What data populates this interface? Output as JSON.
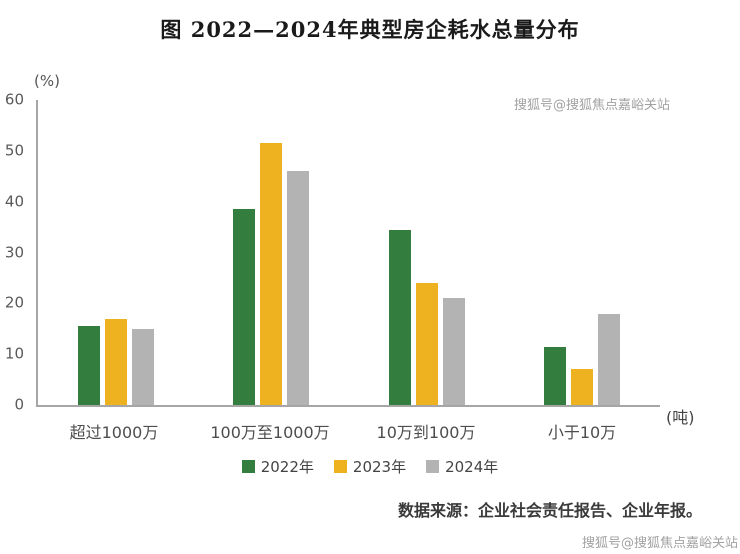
{
  "title": "图  2022—2024年典型房企耗水总量分布",
  "source": "数据来源：企业社会责任报告、企业年报。",
  "watermark": "搜狐号@搜狐焦点嘉峪关站",
  "colors": {
    "series_2022": "#337E3F",
    "series_2023": "#EEB220",
    "series_2024": "#B3B3B3",
    "axis": "#A6A6A6"
  },
  "chart_data": {
    "type": "bar",
    "title": "图  2022—2024年典型房企耗水总量分布",
    "categories": [
      "超过1000万",
      "100万至1000万",
      "10万到100万",
      "小于10万"
    ],
    "series": [
      {
        "name": "2022年",
        "color": "#337E3F",
        "values": [
          15.5,
          38.5,
          34.5,
          11.5
        ]
      },
      {
        "name": "2023年",
        "color": "#EEB220",
        "values": [
          17,
          51.5,
          24,
          7
        ]
      },
      {
        "name": "2024年",
        "color": "#B3B3B3",
        "values": [
          15,
          46,
          21,
          18
        ]
      }
    ],
    "xlabel": "(吨)",
    "ylabel": "(%)",
    "ylim": [
      0,
      60
    ],
    "yticks": [
      0,
      10,
      20,
      30,
      40,
      50,
      60
    ],
    "grid": false,
    "legend_position": "bottom"
  }
}
